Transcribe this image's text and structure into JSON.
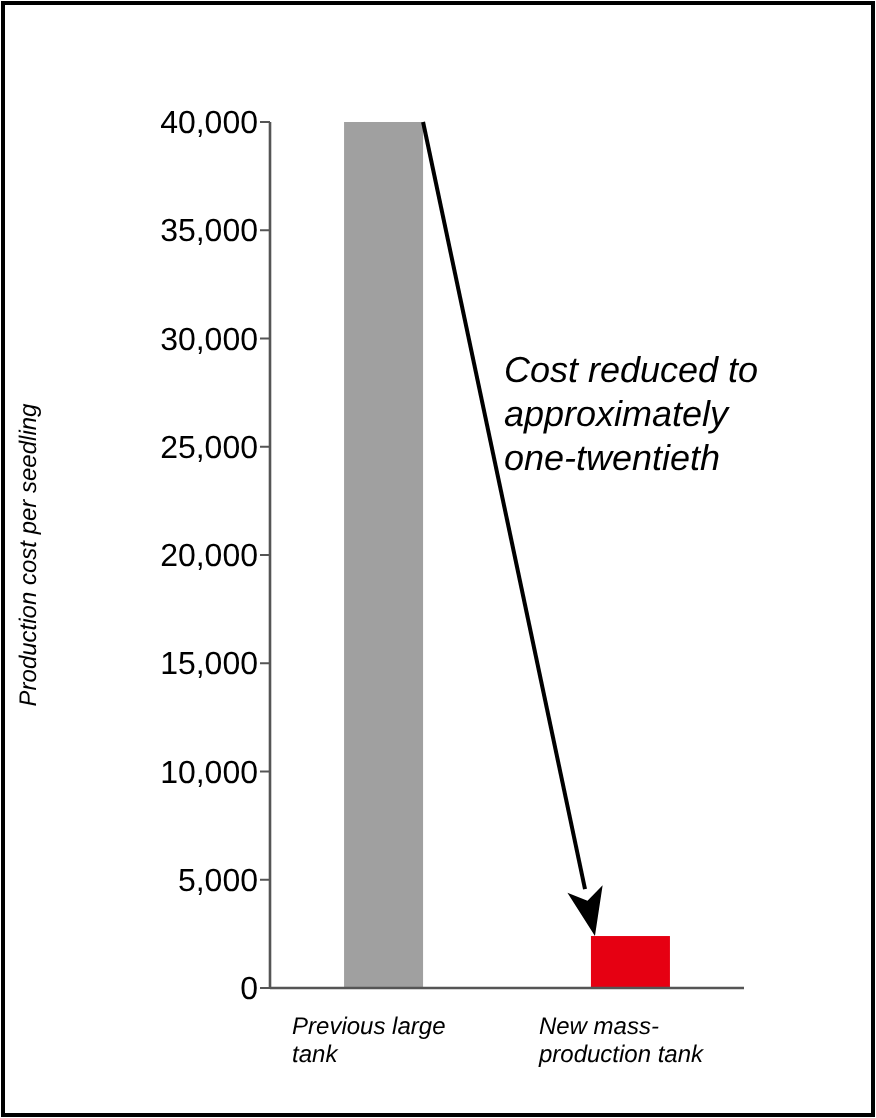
{
  "chart_data": {
    "type": "bar",
    "ylabel": "Production cost per seedling",
    "categories": [
      "Previous large tank",
      "New mass-production tank"
    ],
    "values": [
      40000,
      2400
    ],
    "colors": [
      "#a0a0a0",
      "#e60012"
    ],
    "ylim": [
      0,
      40000
    ],
    "yticks": [
      {
        "value": 0,
        "label": "0"
      },
      {
        "value": 5000,
        "label": "5,000"
      },
      {
        "value": 10000,
        "label": "10,000"
      },
      {
        "value": 15000,
        "label": "15,000"
      },
      {
        "value": 20000,
        "label": "20,000"
      },
      {
        "value": 25000,
        "label": "25,000"
      },
      {
        "value": 30000,
        "label": "30,000"
      },
      {
        "value": 35000,
        "label": "35,000"
      },
      {
        "value": 40000,
        "label": "40,000"
      }
    ],
    "annotations": [
      "Cost reduced to approximately one-twentieth"
    ]
  }
}
